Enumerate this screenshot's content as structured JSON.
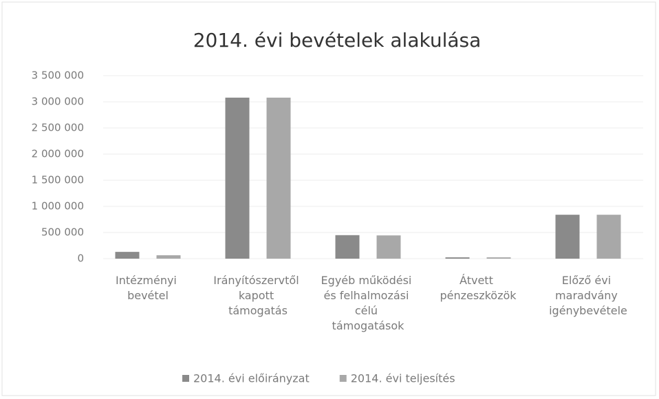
{
  "chart_data": {
    "type": "bar",
    "title": "2014. évi bevételek alakulása",
    "categories": [
      "Intézményi bevétel",
      "Irányítószervtől kapott támogatás",
      "Egyéb működési és felhalmozási célú támogatások",
      "Átvett pénzeszközök",
      "Előző évi maradvány igénybevétele"
    ],
    "series": [
      {
        "name": "2014. évi előirányzat",
        "color": "#8a8a8a",
        "values": [
          130000,
          3080000,
          450000,
          25000,
          840000
        ]
      },
      {
        "name": "2014. évi teljesítés",
        "color": "#a8a8a8",
        "values": [
          65000,
          3080000,
          445000,
          25000,
          840000
        ]
      }
    ],
    "ylim": [
      0,
      3500000
    ],
    "yticks": [
      0,
      {
        "value": 500000,
        "label": "500 000"
      },
      {
        "value": 1000000,
        "label": "1 000 000"
      },
      {
        "value": 1500000,
        "label": "1 500 000"
      },
      {
        "value": 2000000,
        "label": "2 000 000"
      },
      {
        "value": 2500000,
        "label": "2 500 000"
      },
      {
        "value": 3000000,
        "label": "3 000 000"
      },
      {
        "value": 3500000,
        "label": "3 500 000"
      }
    ],
    "grid": true,
    "legend": "bottom"
  }
}
